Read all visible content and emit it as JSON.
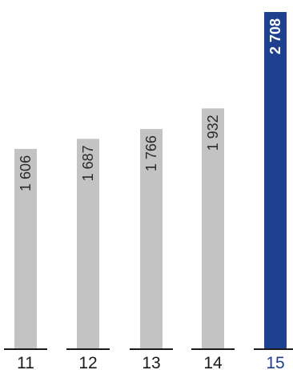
{
  "chart_data": {
    "type": "bar",
    "categories": [
      "11",
      "12",
      "13",
      "14",
      "15"
    ],
    "values": [
      1606,
      1687,
      1766,
      1932,
      2708
    ],
    "value_labels": [
      "1 606",
      "1 687",
      "1 766",
      "1 932",
      "2 708"
    ],
    "highlight_index": 4,
    "ylim": [
      0,
      2708
    ],
    "grid": false,
    "colors": {
      "bar": "#c3c3c3",
      "highlight_bar": "#1f3f8f",
      "axis": "#1a1a1a",
      "highlight_tick": "#1f3f8f"
    }
  }
}
